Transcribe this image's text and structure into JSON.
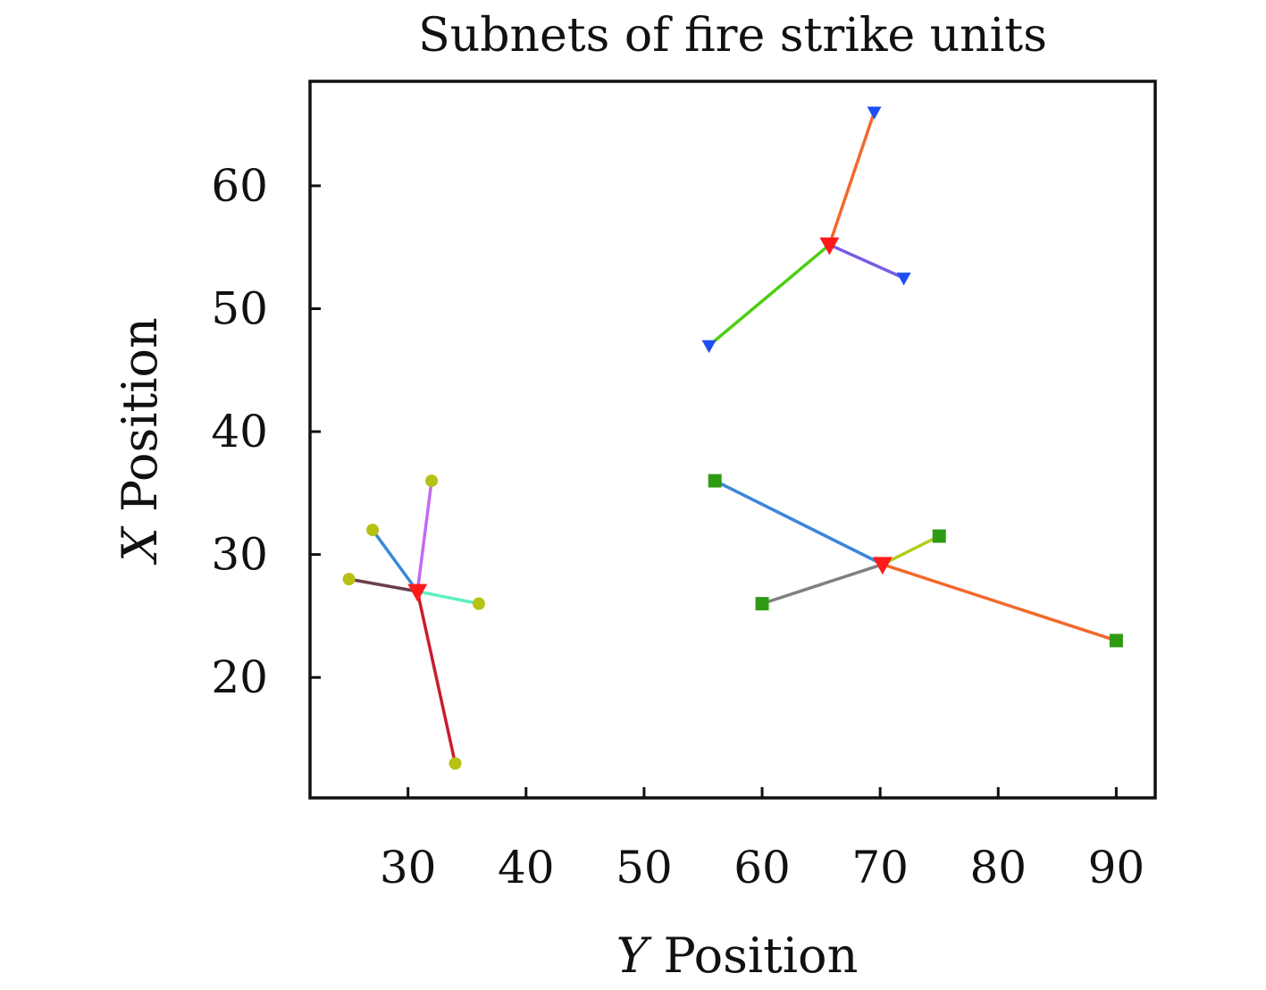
{
  "chart_data": {
    "type": "scatter",
    "title": "Subnets of fire strike units",
    "xlabel_var": "Y",
    "xlabel_rest": " Position",
    "ylabel_var": "X",
    "ylabel_rest": " Position",
    "xlim": [
      21.7,
      93.3
    ],
    "ylim": [
      10.2,
      68.5
    ],
    "xticks": [
      30,
      40,
      50,
      60,
      70,
      80,
      90
    ],
    "yticks": [
      20,
      30,
      40,
      50,
      60
    ],
    "grid": false,
    "legend": "none",
    "subnets": [
      {
        "hub": {
          "x": 30.8,
          "y": 27.0,
          "color": "#ff1a1a"
        },
        "node_marker": "circle",
        "node_color": "#b5c214",
        "links": [
          {
            "x": 27.0,
            "y": 32.0,
            "color": "#3a87d6"
          },
          {
            "x": 32.0,
            "y": 36.0,
            "color": "#c569f2"
          },
          {
            "x": 25.0,
            "y": 28.0,
            "color": "#6b3f4a"
          },
          {
            "x": 36.0,
            "y": 26.0,
            "color": "#5ef0c0"
          },
          {
            "x": 34.0,
            "y": 13.0,
            "color": "#c81e2e"
          }
        ]
      },
      {
        "hub": {
          "x": 65.7,
          "y": 55.2,
          "color": "#ff1a1a"
        },
        "node_marker": "triangle-down",
        "node_color": "#1e4ef5",
        "links": [
          {
            "x": 69.5,
            "y": 66.0,
            "color": "#f2692b"
          },
          {
            "x": 72.0,
            "y": 52.5,
            "color": "#7b5ae6"
          },
          {
            "x": 55.5,
            "y": 47.0,
            "color": "#4ccf12"
          }
        ]
      },
      {
        "hub": {
          "x": 70.2,
          "y": 29.2,
          "color": "#ff1a1a"
        },
        "node_marker": "square",
        "node_color": "#2f9a14",
        "links": [
          {
            "x": 56.0,
            "y": 36.0,
            "color": "#3a87d6"
          },
          {
            "x": 75.0,
            "y": 31.5,
            "color": "#b2cc1f"
          },
          {
            "x": 60.0,
            "y": 26.0,
            "color": "#808080"
          },
          {
            "x": 90.0,
            "y": 23.0,
            "color": "#f2692b"
          }
        ]
      }
    ]
  }
}
